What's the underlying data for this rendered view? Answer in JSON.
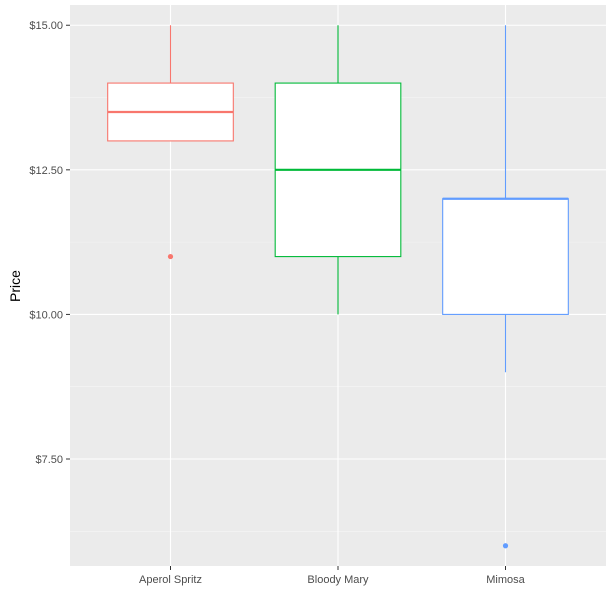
{
  "chart_data": {
    "type": "boxplot",
    "title": "",
    "xlabel": "",
    "ylabel": "Price",
    "ylim": [
      5.65,
      15.35
    ],
    "y_ticks": [
      7.5,
      10.0,
      12.5,
      15.0
    ],
    "y_tick_labels": [
      "$7.50",
      "$10.00",
      "$12.50",
      "$15.00"
    ],
    "y_minor_ticks": [
      6.25,
      8.75,
      11.25,
      13.75
    ],
    "grid": true,
    "legend": "none",
    "categories": [
      "Aperol Spritz",
      "Bloody Mary",
      "Mimosa"
    ],
    "boxes": [
      {
        "category": "Aperol Spritz",
        "whisker_low": 13.0,
        "q1": 13.0,
        "median": 13.5,
        "q3": 14.0,
        "whisker_high": 15.0,
        "outliers": [
          11.0
        ],
        "color": "#F8766D"
      },
      {
        "category": "Bloody Mary",
        "whisker_low": 10.0,
        "q1": 11.0,
        "median": 12.5,
        "q3": 14.0,
        "whisker_high": 15.0,
        "outliers": [],
        "color": "#00BA38"
      },
      {
        "category": "Mimosa",
        "whisker_low": 9.0,
        "q1": 10.0,
        "median": 12.0,
        "q3": 12.0,
        "whisker_high": 15.0,
        "outliers": [
          6.0
        ],
        "color": "#619CFF"
      }
    ],
    "colors": {
      "panel_background": "#EBEBEB",
      "grid_major": "#FFFFFF",
      "grid_minor": "#F5F5F5",
      "box_fill": "#FFFFFF"
    }
  }
}
